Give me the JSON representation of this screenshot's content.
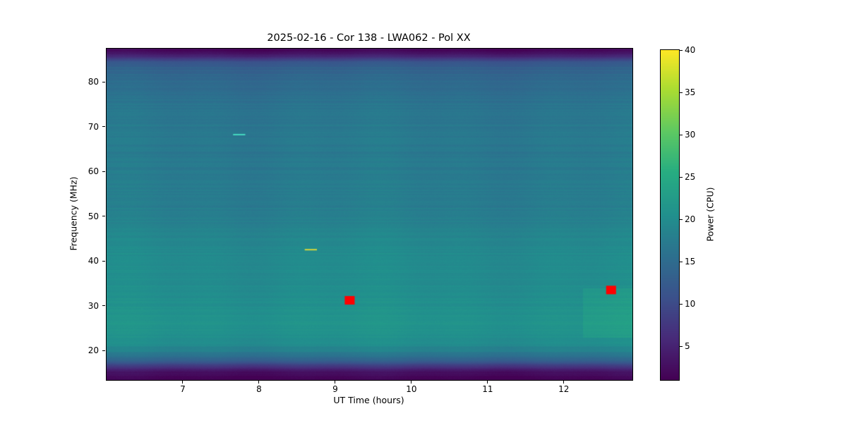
{
  "chart_data": {
    "type": "heatmap",
    "title": "2025-02-16 - Cor 138 - LWA062 - Pol XX",
    "xlabel": "UT Time (hours)",
    "ylabel": "Frequency (MHz)",
    "x_range": [
      6.0,
      12.9
    ],
    "y_range": [
      13.4,
      87.4
    ],
    "x_ticks": [
      7,
      8,
      9,
      10,
      11,
      12
    ],
    "y_ticks": [
      20,
      30,
      40,
      50,
      60,
      70,
      80
    ],
    "grid": false,
    "colormap": "viridis",
    "colorbar": {
      "label": "Power (CPU)",
      "ticks": [
        5,
        10,
        15,
        20,
        25,
        30,
        35,
        40
      ],
      "range": [
        1,
        40
      ],
      "position": "right"
    },
    "frequency_power_profile": [
      {
        "freq": 87.4,
        "power": 1.5
      },
      {
        "freq": 86.5,
        "power": 2.5
      },
      {
        "freq": 85.5,
        "power": 6.0
      },
      {
        "freq": 84.5,
        "power": 11.0
      },
      {
        "freq": 83.0,
        "power": 13.5
      },
      {
        "freq": 81.0,
        "power": 14.5
      },
      {
        "freq": 78.0,
        "power": 15.5
      },
      {
        "freq": 74.0,
        "power": 16.5
      },
      {
        "freq": 70.0,
        "power": 17.0
      },
      {
        "freq": 65.0,
        "power": 17.0
      },
      {
        "freq": 60.0,
        "power": 17.2
      },
      {
        "freq": 55.0,
        "power": 17.5
      },
      {
        "freq": 50.0,
        "power": 18.0
      },
      {
        "freq": 46.0,
        "power": 18.8
      },
      {
        "freq": 43.0,
        "power": 19.5
      },
      {
        "freq": 40.0,
        "power": 20.0
      },
      {
        "freq": 36.0,
        "power": 20.0
      },
      {
        "freq": 32.0,
        "power": 20.3
      },
      {
        "freq": 28.0,
        "power": 20.8
      },
      {
        "freq": 25.0,
        "power": 21.0
      },
      {
        "freq": 22.0,
        "power": 20.0
      },
      {
        "freq": 20.0,
        "power": 18.5
      },
      {
        "freq": 18.5,
        "power": 15.0
      },
      {
        "freq": 17.0,
        "power": 10.0
      },
      {
        "freq": 16.0,
        "power": 5.0
      },
      {
        "freq": 14.8,
        "power": 2.0
      },
      {
        "freq": 13.4,
        "power": 1.2
      }
    ],
    "events": [
      {
        "type": "dash",
        "time": 7.74,
        "freq": 68.2,
        "width_hours": 0.16,
        "color": "#45d8c0",
        "name": "cyan-burst"
      },
      {
        "type": "dash",
        "time": 8.68,
        "freq": 42.5,
        "width_hours": 0.16,
        "color": "#d6d63c",
        "name": "yellow-burst"
      },
      {
        "type": "marker",
        "time": 9.19,
        "freq": 31.2,
        "width_hours": 0.13,
        "height_mhz": 1.9,
        "color": "#ff0000",
        "name": "red-flag-1"
      },
      {
        "type": "marker",
        "time": 12.62,
        "freq": 33.5,
        "width_hours": 0.13,
        "height_mhz": 1.9,
        "color": "#ff0000",
        "name": "red-flag-2"
      },
      {
        "type": "patch",
        "time_range": [
          12.25,
          12.9
        ],
        "freq_range": [
          23.0,
          34.0
        ],
        "delta_power": 1.6,
        "name": "bright-patch-right"
      }
    ]
  }
}
